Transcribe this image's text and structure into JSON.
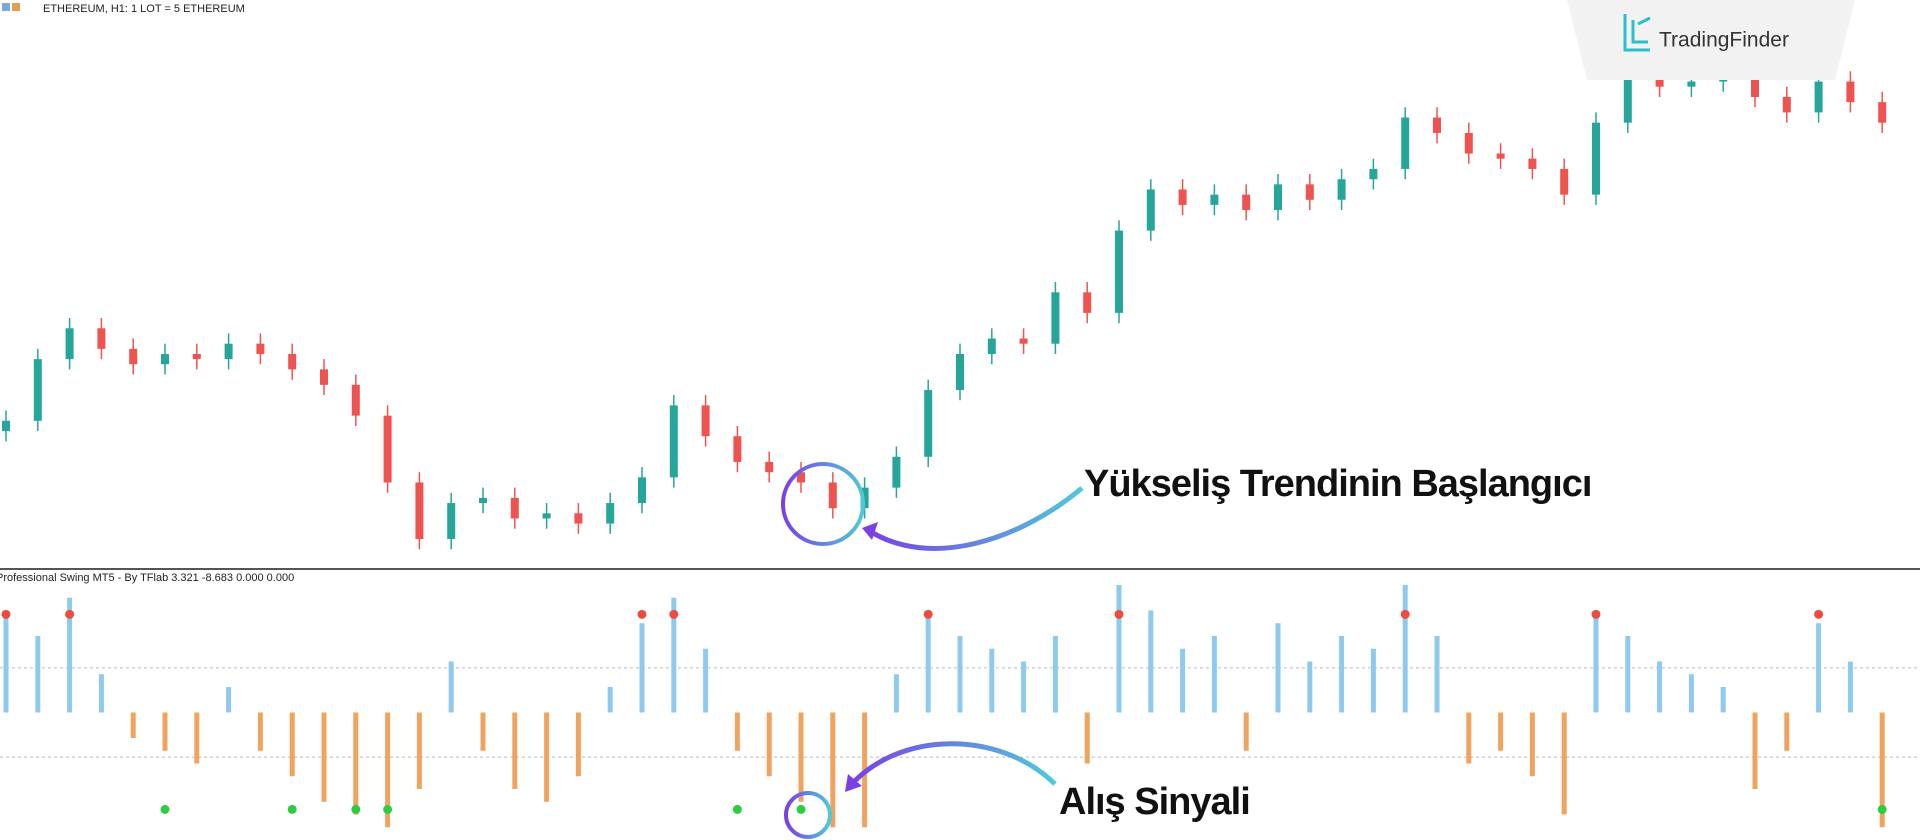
{
  "logo": "TradingFinder",
  "chart_data": [
    {
      "type": "candlestick",
      "title": "ETHEREUM, H1:  1 LOT = 5 ETHEREUM",
      "up_color": "#26a69a",
      "down_color": "#ef5350",
      "ylim": [
        0,
        100
      ],
      "open": [
        28,
        30,
        42,
        48,
        44,
        41,
        43,
        42,
        45,
        43,
        40,
        37,
        31,
        18,
        7,
        14,
        15,
        11,
        12,
        10,
        14,
        19,
        33,
        27,
        22,
        20,
        18,
        13,
        17,
        23,
        36,
        43,
        46,
        45,
        55,
        51,
        67,
        75,
        72,
        74,
        71,
        76,
        73,
        77,
        79,
        89,
        86,
        82,
        81,
        79,
        74,
        88,
        97,
        95,
        96,
        98,
        93,
        90,
        96,
        92
      ],
      "high": [
        32,
        44,
        50,
        50,
        46,
        45,
        45,
        47,
        47,
        45,
        42,
        39,
        33,
        20,
        16,
        17,
        17,
        14,
        14,
        16,
        21,
        35,
        35,
        29,
        24,
        22,
        20,
        19,
        25,
        38,
        45,
        48,
        48,
        57,
        57,
        69,
        77,
        77,
        76,
        76,
        78,
        78,
        79,
        81,
        91,
        91,
        88,
        84,
        83,
        81,
        90,
        99,
        99,
        98,
        100,
        100,
        95,
        98,
        98,
        94
      ],
      "low": [
        26,
        28,
        40,
        42,
        39,
        39,
        40,
        40,
        41,
        38,
        35,
        29,
        16,
        5,
        5,
        12,
        9,
        9,
        8,
        8,
        12,
        17,
        25,
        20,
        18,
        16,
        11,
        11,
        15,
        21,
        34,
        41,
        43,
        43,
        49,
        49,
        65,
        70,
        70,
        69,
        69,
        71,
        71,
        75,
        77,
        84,
        80,
        79,
        77,
        72,
        72,
        86,
        93,
        93,
        94,
        91,
        88,
        88,
        90,
        86
      ],
      "close": [
        30,
        42,
        48,
        44,
        41,
        43,
        42,
        45,
        43,
        40,
        37,
        31,
        18,
        7,
        14,
        15,
        11,
        12,
        10,
        14,
        19,
        33,
        27,
        22,
        20,
        18,
        13,
        17,
        23,
        36,
        43,
        46,
        45,
        55,
        51,
        67,
        75,
        72,
        74,
        71,
        76,
        73,
        77,
        79,
        89,
        86,
        82,
        81,
        79,
        74,
        88,
        97,
        95,
        96,
        98,
        93,
        90,
        96,
        92,
        88
      ],
      "annotations": [
        "Yükseliş Trendinin Başlangıcı"
      ]
    },
    {
      "type": "histogram-oscillator",
      "title": "Professional Swing MT5 - By TFlab 3.321 -8.683 0.000 0.000",
      "positive_color": "#8ec9ee",
      "negative_color": "#f0a35e",
      "ylim": [
        -10,
        10
      ],
      "levels": [
        3.5,
        -3.5
      ],
      "values": [
        8,
        6,
        9,
        3,
        -2,
        -3,
        -4,
        2,
        -3,
        -5,
        -7,
        -8,
        -9,
        -6,
        4,
        -3,
        -6,
        -7,
        -5,
        2,
        7,
        9,
        5,
        -3,
        -5,
        -7,
        -9,
        -9,
        3,
        8,
        6,
        5,
        4,
        6,
        -4,
        10,
        8,
        5,
        6,
        -3,
        7,
        4,
        6,
        5,
        10,
        6,
        -4,
        -3,
        -5,
        -8,
        8,
        6,
        4,
        3,
        2,
        -6,
        -3,
        7,
        4,
        -9
      ],
      "signals": [
        {
          "color": "#ef4b3c",
          "values": [
            7.7,
            null,
            7.7,
            null,
            null,
            null,
            null,
            null,
            null,
            null,
            null,
            null,
            null,
            null,
            null,
            null,
            null,
            null,
            null,
            null,
            7.7,
            7.7,
            null,
            null,
            null,
            null,
            null,
            null,
            null,
            7.7,
            null,
            null,
            null,
            null,
            null,
            7.7,
            null,
            null,
            null,
            null,
            null,
            null,
            null,
            null,
            7.7,
            null,
            null,
            null,
            null,
            null,
            7.7,
            null,
            null,
            null,
            null,
            null,
            null,
            7.7,
            null,
            null
          ]
        },
        {
          "color": "#2ecc40",
          "values": [
            null,
            null,
            null,
            null,
            null,
            -7.6,
            null,
            null,
            null,
            -7.6,
            null,
            -7.6,
            -7.6,
            null,
            null,
            null,
            null,
            null,
            null,
            null,
            null,
            null,
            null,
            -7.6,
            null,
            -7.6,
            null,
            null,
            null,
            null,
            null,
            null,
            null,
            null,
            null,
            null,
            null,
            null,
            null,
            null,
            null,
            null,
            null,
            null,
            null,
            null,
            null,
            null,
            null,
            null,
            null,
            null,
            null,
            null,
            null,
            null,
            null,
            null,
            null,
            -7.6
          ]
        }
      ],
      "annotations": [
        "Alış Sinyali"
      ]
    }
  ]
}
